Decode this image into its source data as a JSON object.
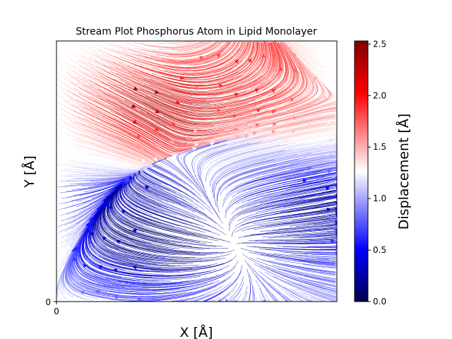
{
  "chart_data": {
    "type": "streamplot",
    "title": "Stream Plot Phosphorus Atom in Lipid Monolayer",
    "xlabel": "X [Å]",
    "ylabel": "Y [Å]",
    "x_ticks": [
      "0"
    ],
    "y_ticks": [
      "0"
    ],
    "grid": false,
    "colormap": "seismic",
    "colorbar": {
      "label": "Displacement [Å]",
      "range": [
        0.0,
        2.53
      ],
      "ticks": [
        "0.0",
        "0.5",
        "1.0",
        "1.5",
        "2.0",
        "2.5"
      ],
      "tick_values": [
        0.0,
        0.5,
        1.0,
        1.5,
        2.0,
        2.5
      ]
    },
    "colors": {
      "low": "#00004c",
      "mid_low": "#0000ff",
      "mid": "#ffffff",
      "mid_high": "#ff0000",
      "high": "#7f0000"
    }
  }
}
